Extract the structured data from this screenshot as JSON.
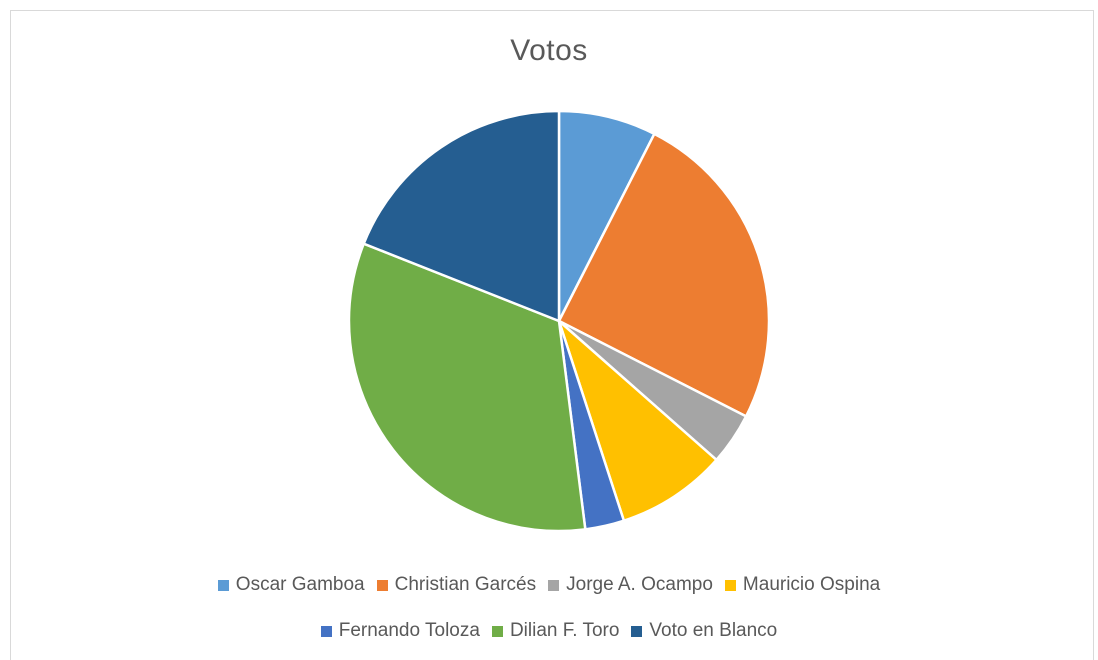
{
  "chart_data": {
    "type": "pie",
    "title": "Votos",
    "legend_position": "bottom",
    "slices": [
      {
        "name": "Oscar Gamboa",
        "value": 7.5,
        "color": "#5B9BD5"
      },
      {
        "name": "Christian Garcés",
        "value": 25.0,
        "color": "#ED7D31"
      },
      {
        "name": "Jorge A. Ocampo",
        "value": 4.0,
        "color": "#A5A5A5"
      },
      {
        "name": "Mauricio Ospina",
        "value": 8.5,
        "color": "#FFC000"
      },
      {
        "name": "Fernando Toloza",
        "value": 3.0,
        "color": "#4472C4"
      },
      {
        "name": "Dilian F. Toro",
        "value": 33.0,
        "color": "#70AD47"
      },
      {
        "name": "Voto en Blanco",
        "value": 19.0,
        "color": "#255E91"
      }
    ]
  }
}
